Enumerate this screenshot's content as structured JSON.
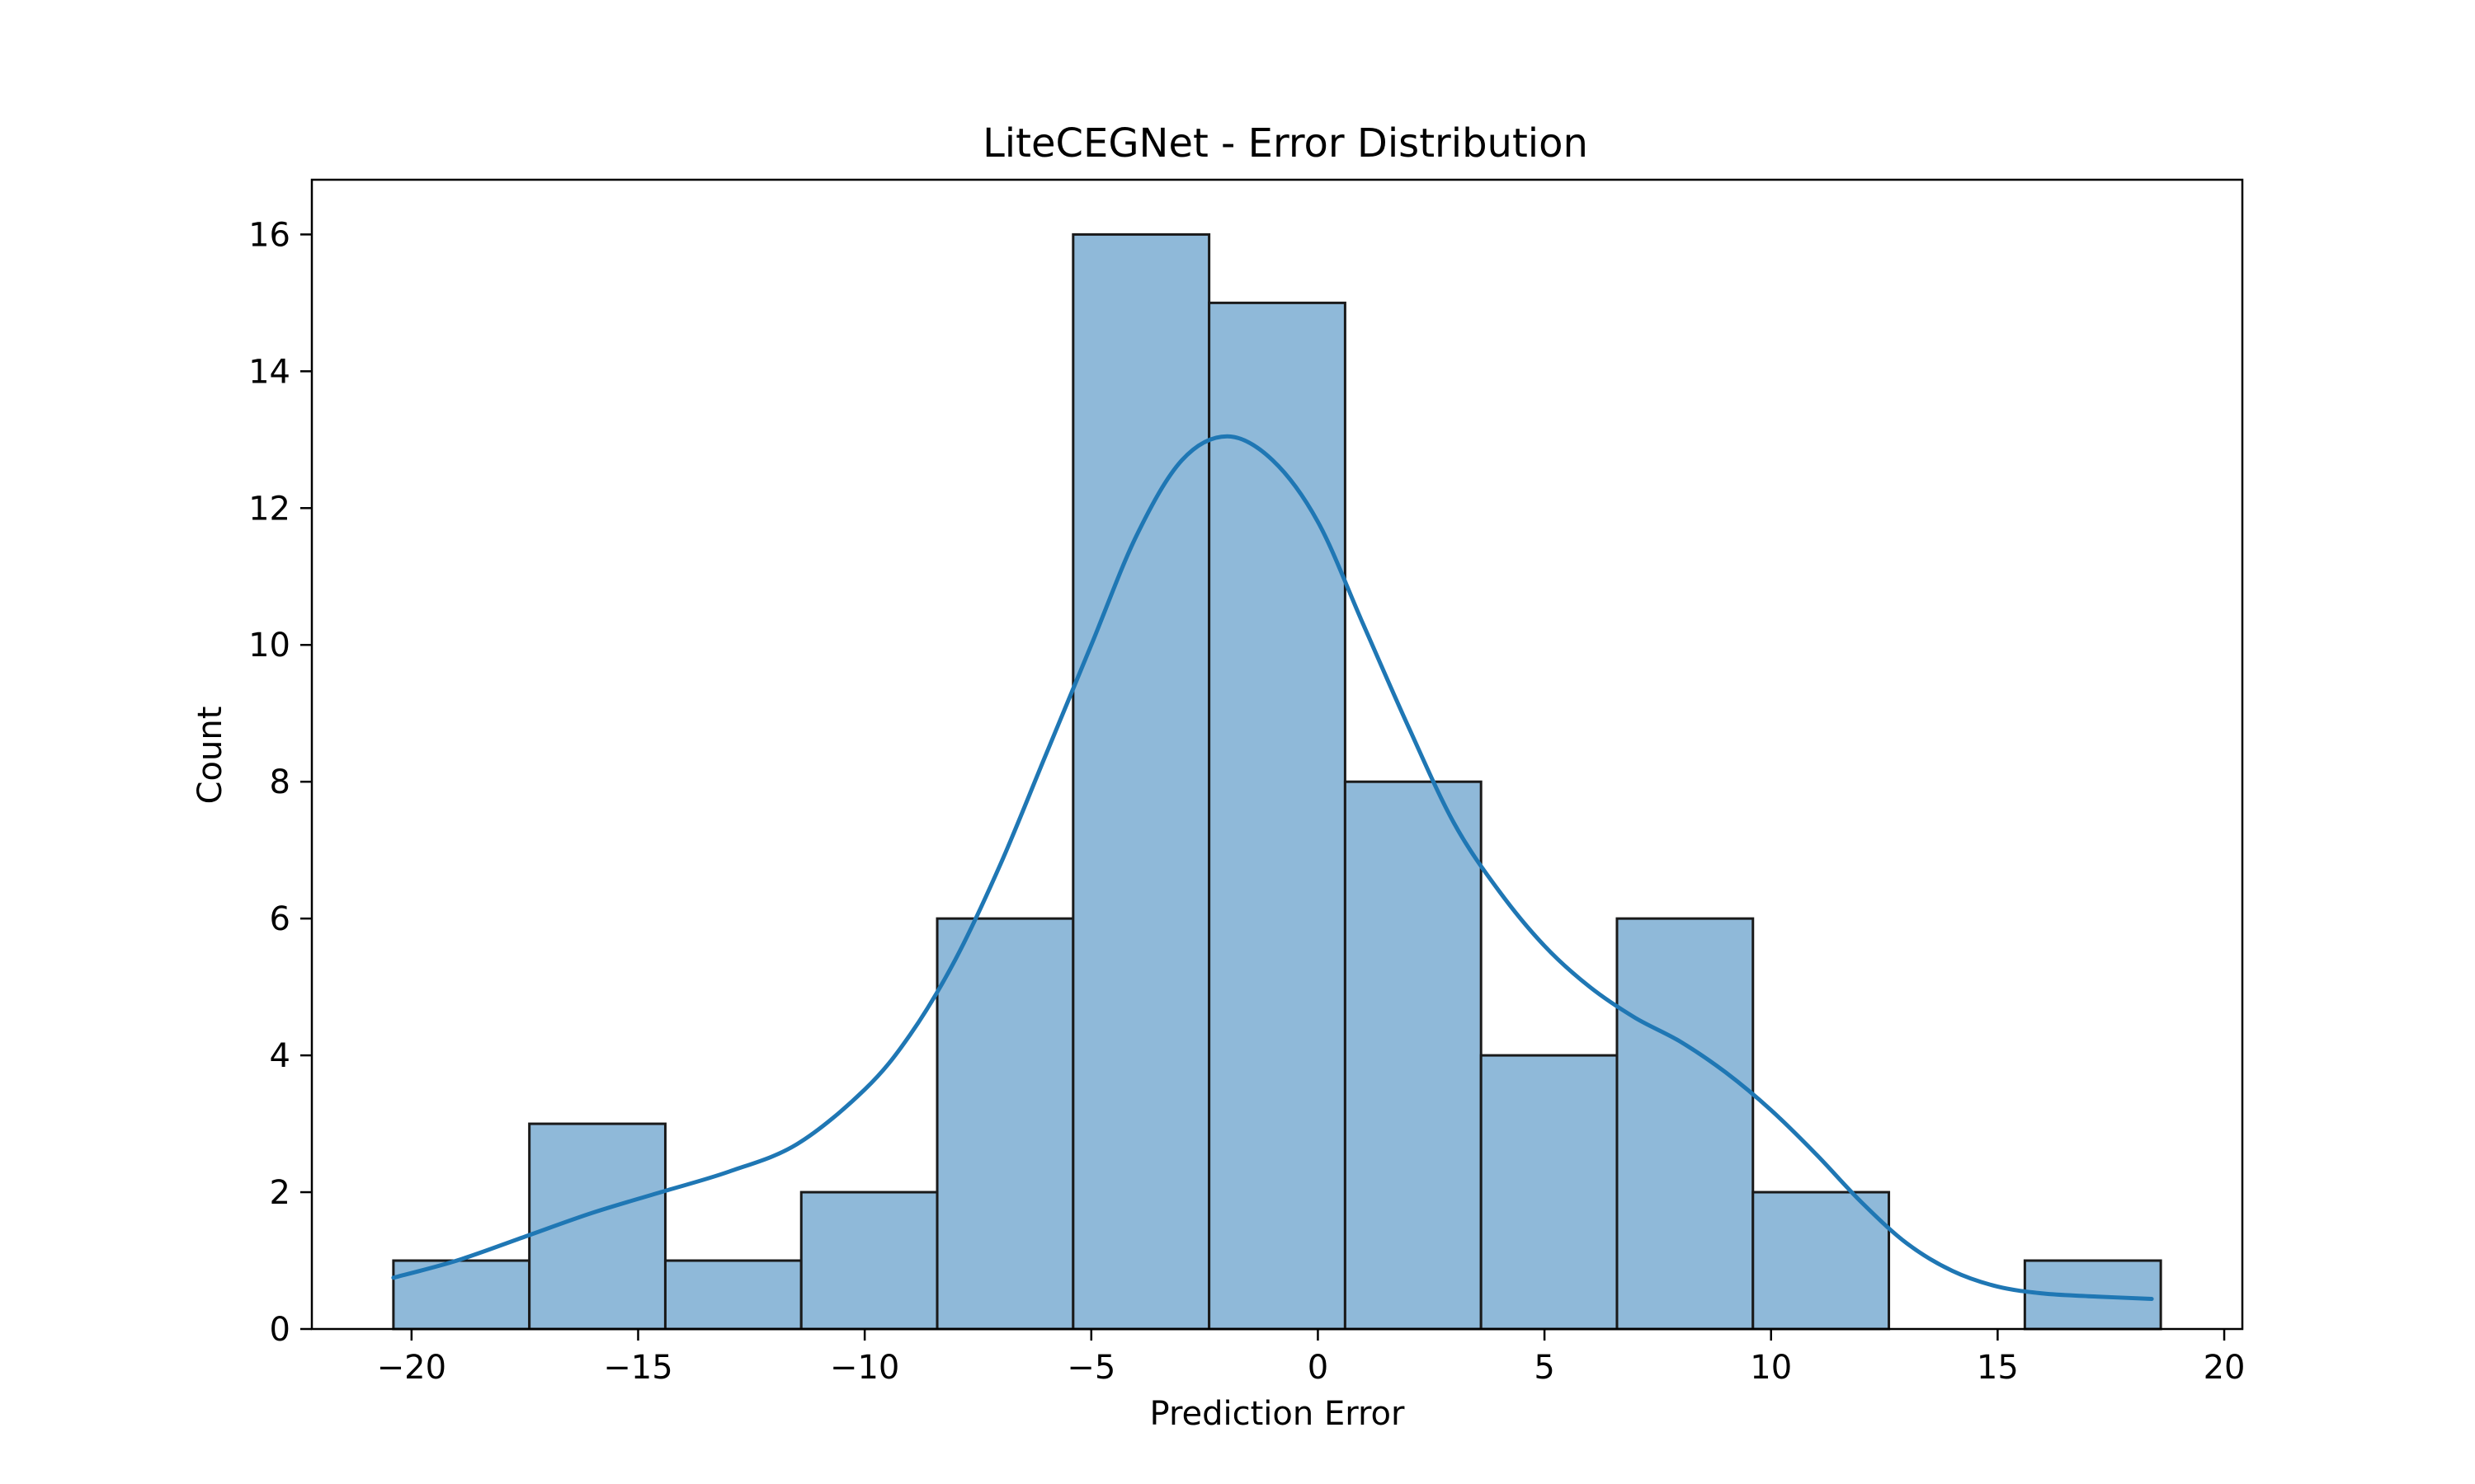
{
  "chart_data": {
    "type": "bar",
    "title": "LiteCEGNet - Error Distribution",
    "xlabel": "Prediction Error",
    "ylabel": "Count",
    "xlim": [
      -22.2,
      20.4
    ],
    "ylim": [
      0,
      16.8
    ],
    "grid": false,
    "x_ticks": [
      -20,
      -15,
      -10,
      -5,
      0,
      5,
      10,
      15,
      20
    ],
    "x_tick_labels": [
      "−20",
      "−15",
      "−10",
      "−5",
      "0",
      "5",
      "10",
      "15",
      "20"
    ],
    "y_ticks": [
      0,
      2,
      4,
      6,
      8,
      10,
      12,
      14,
      16
    ],
    "y_tick_labels": [
      "0",
      "2",
      "4",
      "6",
      "8",
      "10",
      "12",
      "14",
      "16"
    ],
    "bin_edges": [
      -20.4,
      -17.4,
      -14.4,
      -11.4,
      -8.4,
      -5.4,
      -2.4,
      0.6,
      3.6,
      6.6,
      9.6,
      12.6,
      15.6,
      18.6
    ],
    "series": [
      {
        "type": "histogram",
        "values": [
          1,
          3,
          1,
          2,
          6,
          16,
          15,
          8,
          4,
          6,
          2,
          0,
          1
        ],
        "color": "#8fb9d9",
        "edgecolor": "#1a1a1a"
      },
      {
        "type": "kde-line",
        "color": "#1f77b4",
        "x": [
          -20.4,
          -19,
          -17.5,
          -16,
          -14.5,
          -13,
          -11.5,
          -10,
          -9,
          -8,
          -7,
          -6,
          -5,
          -4,
          -3,
          -2,
          -1,
          0,
          1,
          2,
          3,
          4,
          5,
          6,
          7,
          8,
          9,
          10,
          11,
          12,
          13,
          14,
          15,
          16,
          17,
          18.4
        ],
        "y": [
          0.75,
          1.0,
          1.35,
          1.7,
          2.0,
          2.3,
          2.7,
          3.5,
          4.3,
          5.4,
          6.8,
          8.4,
          10.0,
          11.6,
          12.7,
          13.05,
          12.7,
          11.8,
          10.3,
          8.8,
          7.4,
          6.4,
          5.6,
          5.0,
          4.55,
          4.2,
          3.75,
          3.2,
          2.55,
          1.85,
          1.25,
          0.85,
          0.62,
          0.52,
          0.48,
          0.44
        ]
      }
    ]
  }
}
